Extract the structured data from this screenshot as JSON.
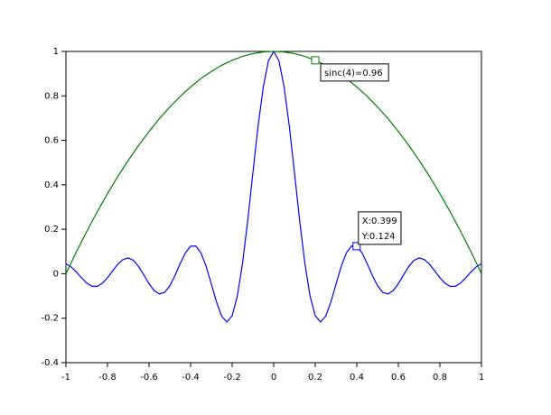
{
  "chart_data": {
    "type": "line",
    "x": [
      -1,
      -0.975,
      -0.95,
      -0.925,
      -0.9,
      -0.875,
      -0.85,
      -0.825,
      -0.8,
      -0.775,
      -0.75,
      -0.725,
      -0.7,
      -0.675,
      -0.65,
      -0.625,
      -0.6,
      -0.575,
      -0.55,
      -0.525,
      -0.5,
      -0.475,
      -0.45,
      -0.425,
      -0.4,
      -0.375,
      -0.35,
      -0.325,
      -0.3,
      -0.275,
      -0.25,
      -0.225,
      -0.2,
      -0.175,
      -0.15,
      -0.125,
      -0.1,
      -0.075,
      -0.05,
      -0.025,
      0,
      0.025,
      0.05,
      0.075,
      0.1,
      0.125,
      0.15,
      0.175,
      0.2,
      0.225,
      0.25,
      0.275,
      0.3,
      0.325,
      0.35,
      0.375,
      0.4,
      0.425,
      0.45,
      0.475,
      0.5,
      0.525,
      0.55,
      0.575,
      0.6,
      0.625,
      0.65,
      0.675,
      0.7,
      0.725,
      0.75,
      0.775,
      0.8,
      0.825,
      0.85,
      0.875,
      0.9,
      0.925,
      0.95,
      0.975,
      1
    ],
    "series": [
      {
        "color": "#0000ff",
        "values": [
          0.046,
          0.031,
          0.008,
          -0.018,
          -0.042,
          -0.056,
          -0.057,
          -0.043,
          -0.018,
          0.013,
          0.043,
          0.064,
          0.071,
          0.06,
          0.032,
          -0.005,
          -0.045,
          -0.076,
          -0.091,
          -0.084,
          -0.054,
          -0.008,
          0.046,
          0.094,
          0.124,
          0.125,
          0.094,
          0.033,
          -0.047,
          -0.128,
          -0.192,
          -0.217,
          -0.189,
          -0.1,
          0.047,
          0.239,
          0.455,
          0.665,
          0.841,
          0.959,
          1,
          0.959,
          0.841,
          0.665,
          0.455,
          0.239,
          0.047,
          -0.1,
          -0.189,
          -0.217,
          -0.192,
          -0.128,
          -0.047,
          0.033,
          0.094,
          0.125,
          0.124,
          0.094,
          0.046,
          -0.008,
          -0.054,
          -0.084,
          -0.091,
          -0.076,
          -0.045,
          -0.005,
          0.032,
          0.06,
          0.071,
          0.064,
          0.043,
          0.013,
          -0.018,
          -0.043,
          -0.057,
          -0.056,
          -0.042,
          -0.018,
          0.008,
          0.031,
          0.046
        ]
      },
      {
        "color": "#008000",
        "values": [
          0,
          0.049,
          0.098,
          0.144,
          0.19,
          0.234,
          0.278,
          0.319,
          0.36,
          0.399,
          0.438,
          0.474,
          0.51,
          0.544,
          0.578,
          0.609,
          0.64,
          0.669,
          0.698,
          0.724,
          0.75,
          0.774,
          0.798,
          0.819,
          0.84,
          0.859,
          0.878,
          0.894,
          0.91,
          0.924,
          0.938,
          0.949,
          0.96,
          0.969,
          0.978,
          0.984,
          0.99,
          0.994,
          0.9975,
          0.999,
          1,
          0.999,
          0.9975,
          0.994,
          0.99,
          0.984,
          0.978,
          0.969,
          0.96,
          0.949,
          0.938,
          0.924,
          0.91,
          0.894,
          0.878,
          0.859,
          0.84,
          0.819,
          0.798,
          0.774,
          0.75,
          0.724,
          0.698,
          0.669,
          0.64,
          0.609,
          0.578,
          0.544,
          0.51,
          0.474,
          0.438,
          0.399,
          0.36,
          0.319,
          0.278,
          0.234,
          0.19,
          0.144,
          0.098,
          0.049,
          0
        ]
      }
    ],
    "xlim": [
      -1,
      1
    ],
    "xticks": [
      -1,
      -0.8,
      -0.6,
      -0.4,
      -0.2,
      0,
      0.2,
      0.4,
      0.6,
      0.8,
      1
    ],
    "ylim": [
      -0.4,
      1
    ],
    "yticks": [
      -0.4,
      -0.2,
      0,
      0.2,
      0.4,
      0.6,
      0.8,
      1
    ],
    "annotations": [
      {
        "x": 0.2,
        "y": 0.96,
        "color": "#008000",
        "lines": [
          "sinc(4)=0.96"
        ]
      },
      {
        "x": 0.399,
        "y": 0.124,
        "color": "#0000ff",
        "lines": [
          "X:0.399",
          "Y:0.124"
        ]
      }
    ]
  }
}
